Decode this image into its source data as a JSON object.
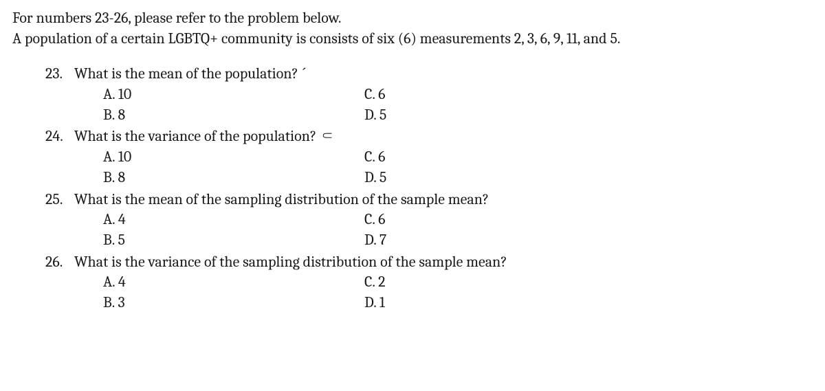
{
  "intro": {
    "line1": "For numbers 23-26, please refer to the problem below.",
    "line2": "A population of a certain LGBTQ+ community is consists of six (6) measurements 2, 3, 6, 9, 11, and 5."
  },
  "questions": [
    {
      "num": "23.",
      "text": "What is the mean of the population? ˊ",
      "opts": {
        "A": "A. 10",
        "B": "B. 8",
        "C": "C. 6",
        "D": "D. 5"
      }
    },
    {
      "num": "24.",
      "text": "What is the variance of the population? ⸦",
      "opts": {
        "A": "A. 10",
        "B": "B. 8",
        "C": "C. 6",
        "D": "D. 5"
      }
    },
    {
      "num": "25.",
      "text": "What is the mean of the sampling distribution of the sample mean?",
      "opts": {
        "A": "A. 4",
        "B": "B. 5",
        "C": "C. 6",
        "D": "D. 7"
      }
    },
    {
      "num": "26.",
      "text": "What is the variance of the sampling distribution of the sample mean?",
      "opts": {
        "A": "A. 4",
        "B": "B. 3",
        "C": "C. 2",
        "D": "D. 1"
      }
    }
  ]
}
